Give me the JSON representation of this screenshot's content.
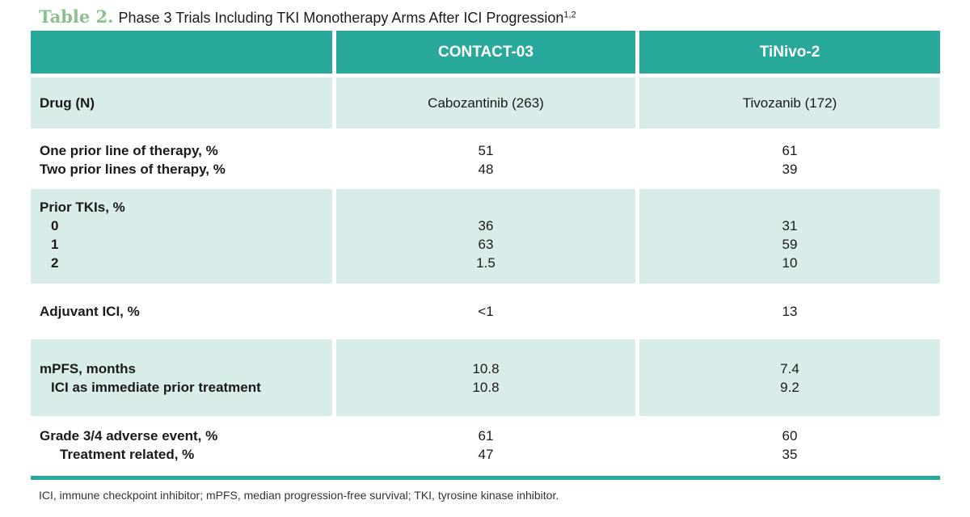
{
  "title": {
    "label": "Table 2.",
    "text": "Phase 3 Trials Including TKI Monotherapy Arms After ICI Progression",
    "sup": "1,2"
  },
  "header": {
    "col1": "CONTACT-03",
    "col2": "TiNivo-2"
  },
  "rows": {
    "drug": {
      "label": "Drug (N)",
      "col1": "Cabozantinib (263)",
      "col2": "Tivozanib (172)"
    },
    "prior_lines": [
      {
        "label": "One prior line of therapy, %",
        "col1": "51",
        "col2": "61"
      },
      {
        "label": "Two prior lines of therapy, %",
        "col1": "48",
        "col2": "39"
      }
    ],
    "prior_tkis": {
      "label": "Prior TKIs, %",
      "items": [
        {
          "label": "0",
          "col1": "36",
          "col2": "31"
        },
        {
          "label": "1",
          "col1": "63",
          "col2": "59"
        },
        {
          "label": "2",
          "col1": "1.5",
          "col2": "10"
        }
      ]
    },
    "adjuvant": {
      "label": "Adjuvant ICI, %",
      "col1": "<1",
      "col2": "13"
    },
    "mpfs": [
      {
        "label": "mPFS, months",
        "col1": "10.8",
        "col2": "7.4"
      },
      {
        "label": "ICI as immediate prior treatment",
        "col1": "10.8",
        "col2": "9.2"
      }
    ],
    "grade34": [
      {
        "label": "Grade 3/4 adverse event, %",
        "col1": "61",
        "col2": "60"
      },
      {
        "label": "Treatment related, %",
        "col1": "47",
        "col2": "35"
      }
    ]
  },
  "colors": {
    "title_accent": "#8cc08f",
    "header_bg": "#29a99b",
    "row_shade": "#d8ede9"
  },
  "footnote": "ICI, immune checkpoint inhibitor; mPFS, median progression-free survival; TKI, tyrosine kinase inhibitor."
}
